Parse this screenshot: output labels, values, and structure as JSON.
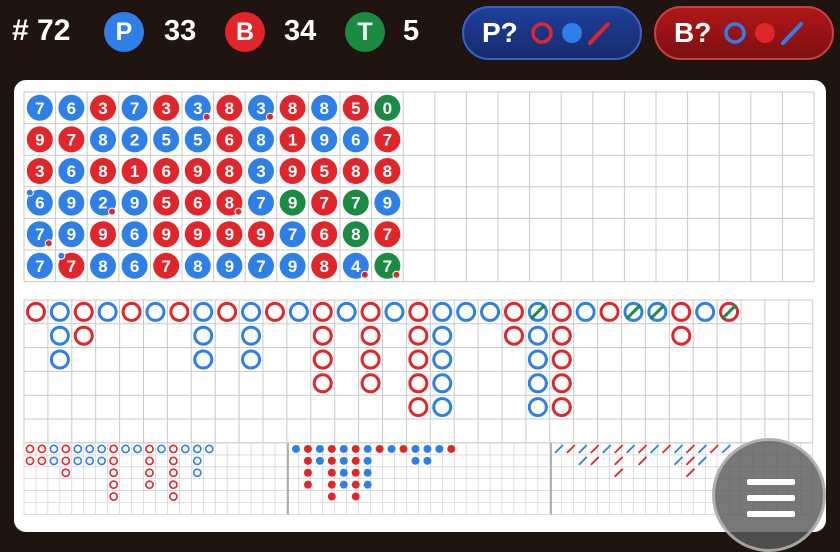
{
  "header": {
    "round_label": "# 72",
    "player": {
      "letter": "P",
      "count": "33"
    },
    "banker": {
      "letter": "B",
      "count": "34"
    },
    "tie": {
      "letter": "T",
      "count": "5"
    }
  },
  "predictions": [
    {
      "label": "P?",
      "name": "player-prediction-button"
    },
    {
      "label": "B?",
      "name": "banker-prediction-button"
    }
  ],
  "colors": {
    "player": "#2f7fe8",
    "banker": "#e0262b",
    "tie": "#1b8a43",
    "background": "#1f1410"
  },
  "bead_road": [
    [
      "7B",
      "9R",
      "3R",
      "6B",
      "7B",
      "7B"
    ],
    [
      "6B",
      "7R",
      "6B",
      "9B",
      "9B",
      "7R"
    ],
    [
      "3R",
      "8B",
      "8R",
      "2B",
      "9R",
      "8B"
    ],
    [
      "7B",
      "2B",
      "1R",
      "9B",
      "6B",
      "6B"
    ],
    [
      "3R",
      "5B",
      "6R",
      "5R",
      "9R",
      "7R"
    ],
    [
      "3B",
      "5B",
      "9R",
      "6R",
      "9R",
      "8B"
    ],
    [
      "8R",
      "6R",
      "8R",
      "8R",
      "9R",
      "9B"
    ],
    [
      "3B",
      "8B",
      "3B",
      "7B",
      "9R",
      "7B"
    ],
    [
      "8R",
      "1R",
      "9R",
      "9G",
      "7B",
      "9B"
    ],
    [
      "8B",
      "9B",
      "5R",
      "7R",
      "6R",
      "8R"
    ],
    [
      "5R",
      "6B",
      "8R",
      "7G",
      "8G",
      "4B"
    ],
    [
      "0G",
      "7R",
      "8R",
      "9B",
      "7R",
      "7G"
    ]
  ],
  "menu": {
    "icon": "hamburger-menu-icon"
  }
}
